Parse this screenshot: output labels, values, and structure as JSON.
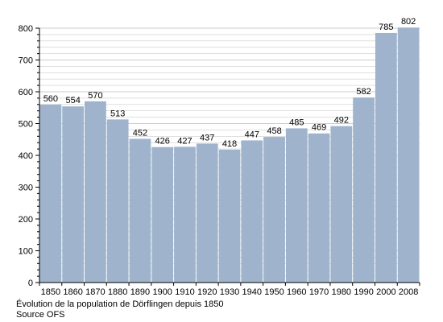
{
  "chart_data": {
    "type": "bar",
    "categories": [
      "1850",
      "1860",
      "1870",
      "1880",
      "1890",
      "1900",
      "1910",
      "1920",
      "1930",
      "1940",
      "1950",
      "1960",
      "1970",
      "1980",
      "1990",
      "2000",
      "2008"
    ],
    "values": [
      560,
      554,
      570,
      513,
      452,
      426,
      427,
      437,
      418,
      447,
      458,
      485,
      469,
      492,
      582,
      785,
      802
    ],
    "title": "",
    "xlabel": "",
    "ylabel": "",
    "ylim": [
      0,
      800
    ],
    "yticks": [
      "0",
      "100",
      "200",
      "300",
      "400",
      "500",
      "600",
      "700",
      "800"
    ],
    "grid": true,
    "bar_color": "#9fb4cc",
    "grid_color": "#cccccc"
  },
  "caption": {
    "line1": "Évolution de la population de Dörflingen depuis 1850",
    "line2": "Source OFS"
  }
}
